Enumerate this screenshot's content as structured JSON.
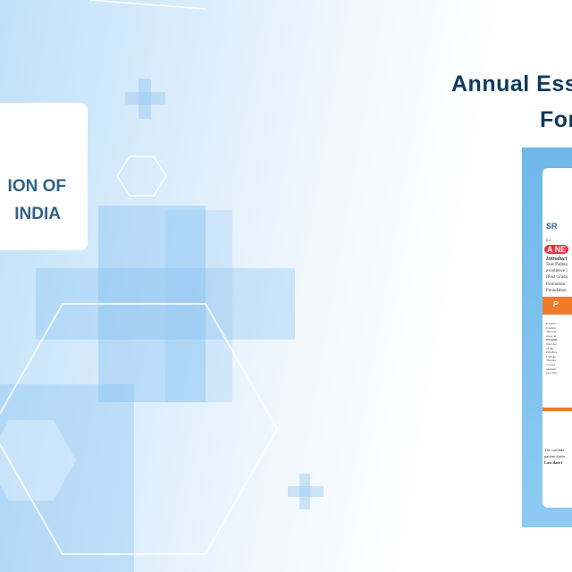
{
  "left_card": {
    "line1": "ION OF",
    "line2": "INDIA"
  },
  "heading": {
    "line1": "Annual Ess",
    "line2": "For"
  },
  "poster": {
    "title": "SR",
    "address": "# 4",
    "badge": "A NE",
    "intro": "Introduct",
    "lines": [
      "Sree Padma",
      "excellence i",
      "(Post Gradu",
      "Promotion",
      "Foundation"
    ],
    "banner": "P",
    "bullets": [
      "It will b",
      "Contest",
      "The resi",
      "essay in",
      "Novemb",
      "This doc",
      "of the",
      "Principa",
      "College",
      "The esa",
      "a word",
      "unexpla",
      "post also"
    ],
    "footer": [
      "The candida",
      "patient durin",
      "Last date f"
    ]
  },
  "colors": {
    "accent": "#0e3a5c",
    "badge": "#e8323c",
    "banner": "#f07a2a",
    "frame": "#7cc0ec"
  }
}
